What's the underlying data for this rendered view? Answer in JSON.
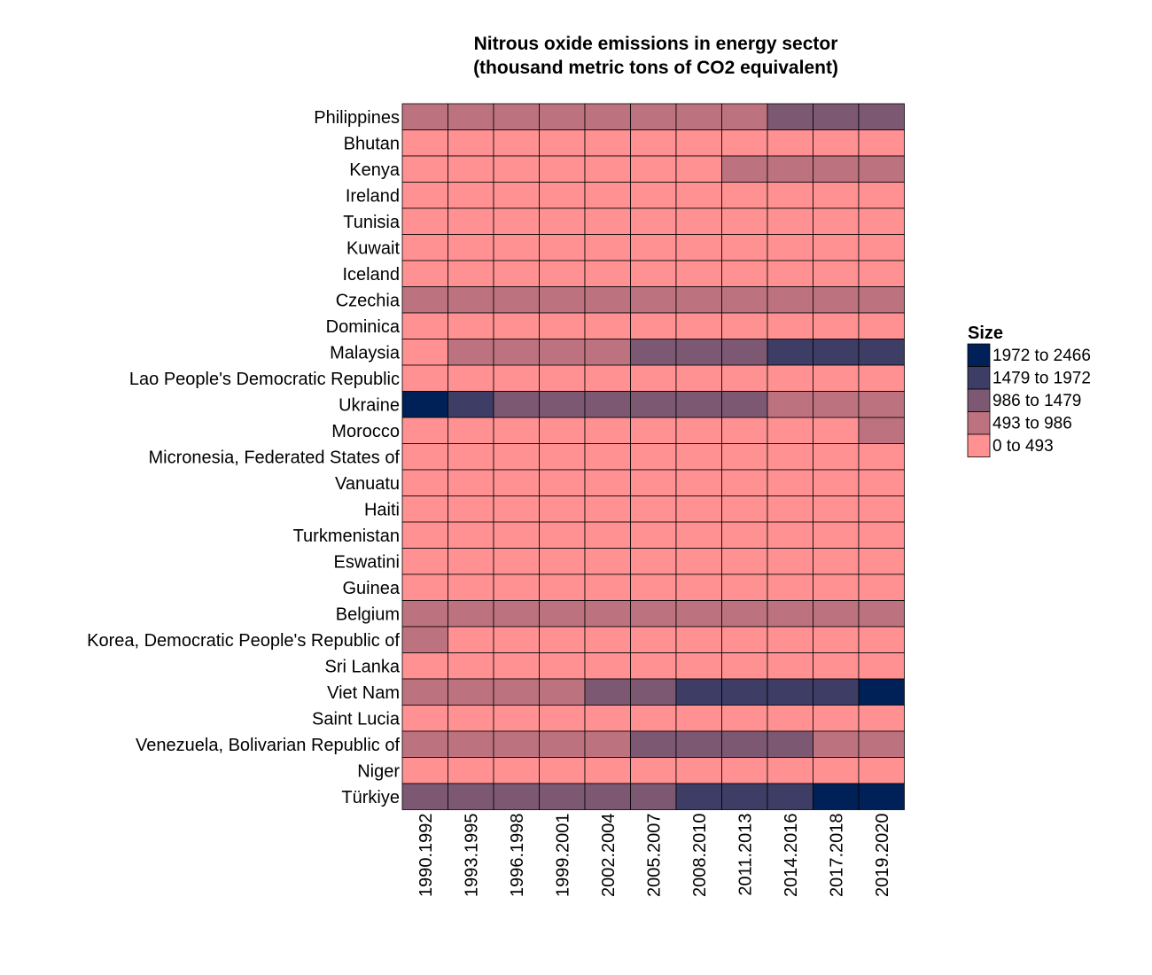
{
  "chart_data": {
    "type": "heatmap",
    "title_line1": "Nitrous oxide emissions in energy sector",
    "title_line2": "(thousand metric tons of CO2 equivalent)",
    "xlabel": "",
    "ylabel": "",
    "x": [
      "1990.1992",
      "1993.1995",
      "1996.1998",
      "1999.2001",
      "2002.2004",
      "2005.2007",
      "2008.2010",
      "2011.2013",
      "2014.2016",
      "2017.2018",
      "2019.2020"
    ],
    "y": [
      "Philippines",
      "Bhutan",
      "Kenya",
      "Ireland",
      "Tunisia",
      "Kuwait",
      "Iceland",
      "Czechia",
      "Dominica",
      "Malaysia",
      "Lao People's Democratic Republic",
      "Ukraine",
      "Morocco",
      "Micronesia, Federated States of",
      "Vanuatu",
      "Haiti",
      "Turkmenistan",
      "Eswatini",
      "Guinea",
      "Belgium",
      "Korea, Democratic People's Republic of",
      "Sri Lanka",
      "Viet Nam",
      "Saint Lucia",
      "Venezuela, Bolivarian Republic of",
      "Niger",
      "Türkiye"
    ],
    "bins_note_levels": "0=0 to 493, 1=493 to 986, 2=986 to 1479, 3=1479 to 1972, 4=1972 to 2466",
    "z_bins": [
      [
        1,
        1,
        1,
        1,
        1,
        1,
        1,
        1,
        2,
        2,
        2
      ],
      [
        0,
        0,
        0,
        0,
        0,
        0,
        0,
        0,
        0,
        0,
        0
      ],
      [
        0,
        0,
        0,
        0,
        0,
        0,
        0,
        1,
        1,
        1,
        1
      ],
      [
        0,
        0,
        0,
        0,
        0,
        0,
        0,
        0,
        0,
        0,
        0
      ],
      [
        0,
        0,
        0,
        0,
        0,
        0,
        0,
        0,
        0,
        0,
        0
      ],
      [
        0,
        0,
        0,
        0,
        0,
        0,
        0,
        0,
        0,
        0,
        0
      ],
      [
        0,
        0,
        0,
        0,
        0,
        0,
        0,
        0,
        0,
        0,
        0
      ],
      [
        1,
        1,
        1,
        1,
        1,
        1,
        1,
        1,
        1,
        1,
        1
      ],
      [
        0,
        0,
        0,
        0,
        0,
        0,
        0,
        0,
        0,
        0,
        0
      ],
      [
        0,
        1,
        1,
        1,
        1,
        2,
        2,
        2,
        3,
        3,
        3
      ],
      [
        0,
        0,
        0,
        0,
        0,
        0,
        0,
        0,
        0,
        0,
        0
      ],
      [
        4,
        3,
        2,
        2,
        2,
        2,
        2,
        2,
        1,
        1,
        1
      ],
      [
        0,
        0,
        0,
        0,
        0,
        0,
        0,
        0,
        0,
        0,
        1
      ],
      [
        0,
        0,
        0,
        0,
        0,
        0,
        0,
        0,
        0,
        0,
        0
      ],
      [
        0,
        0,
        0,
        0,
        0,
        0,
        0,
        0,
        0,
        0,
        0
      ],
      [
        0,
        0,
        0,
        0,
        0,
        0,
        0,
        0,
        0,
        0,
        0
      ],
      [
        0,
        0,
        0,
        0,
        0,
        0,
        0,
        0,
        0,
        0,
        0
      ],
      [
        0,
        0,
        0,
        0,
        0,
        0,
        0,
        0,
        0,
        0,
        0
      ],
      [
        0,
        0,
        0,
        0,
        0,
        0,
        0,
        0,
        0,
        0,
        0
      ],
      [
        1,
        1,
        1,
        1,
        1,
        1,
        1,
        1,
        1,
        1,
        1
      ],
      [
        1,
        0,
        0,
        0,
        0,
        0,
        0,
        0,
        0,
        0,
        0
      ],
      [
        0,
        0,
        0,
        0,
        0,
        0,
        0,
        0,
        0,
        0,
        0
      ],
      [
        1,
        1,
        1,
        1,
        2,
        2,
        3,
        3,
        3,
        3,
        4
      ],
      [
        0,
        0,
        0,
        0,
        0,
        0,
        0,
        0,
        0,
        0,
        0
      ],
      [
        1,
        1,
        1,
        1,
        1,
        2,
        2,
        2,
        2,
        1,
        1
      ],
      [
        0,
        0,
        0,
        0,
        0,
        0,
        0,
        0,
        0,
        0,
        0
      ],
      [
        2,
        2,
        2,
        2,
        2,
        2,
        3,
        3,
        3,
        4,
        4
      ]
    ],
    "legend": {
      "title": "Size",
      "position": "right",
      "items": [
        {
          "label": "1972 to 2466",
          "color": "#002157"
        },
        {
          "label": "1479 to 1972",
          "color": "#3d3d66"
        },
        {
          "label": "986 to 1479",
          "color": "#7c5872"
        },
        {
          "label": "493 to 986",
          "color": "#bd737f"
        },
        {
          "label": "0 to 493",
          "color": "#ff9193"
        }
      ]
    },
    "bin_colors": [
      "#ff9193",
      "#bd737f",
      "#7c5872",
      "#3d3d66",
      "#002157"
    ],
    "grid": false
  }
}
